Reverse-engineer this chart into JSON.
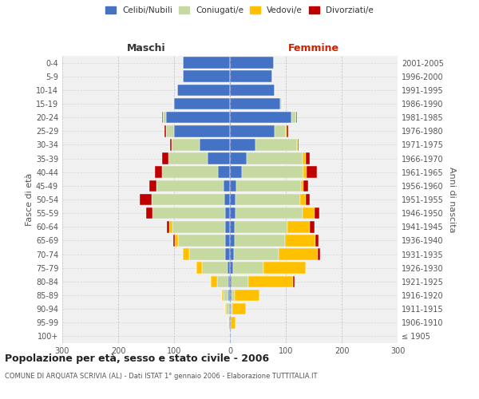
{
  "age_groups": [
    "100+",
    "95-99",
    "90-94",
    "85-89",
    "80-84",
    "75-79",
    "70-74",
    "65-69",
    "60-64",
    "55-59",
    "50-54",
    "45-49",
    "40-44",
    "35-39",
    "30-34",
    "25-29",
    "20-24",
    "15-19",
    "10-14",
    "5-9",
    "0-4"
  ],
  "birth_years": [
    "≤ 1905",
    "1906-1910",
    "1911-1915",
    "1916-1920",
    "1921-1925",
    "1926-1930",
    "1931-1935",
    "1936-1940",
    "1941-1945",
    "1946-1950",
    "1951-1955",
    "1956-1960",
    "1961-1965",
    "1966-1970",
    "1971-1975",
    "1976-1980",
    "1981-1985",
    "1986-1990",
    "1991-1995",
    "1996-2000",
    "2001-2005"
  ],
  "male": {
    "celibe": [
      0,
      1,
      2,
      3,
      3,
      5,
      8,
      8,
      8,
      8,
      10,
      12,
      22,
      40,
      55,
      100,
      115,
      100,
      95,
      85,
      85
    ],
    "coniugato": [
      0,
      2,
      5,
      8,
      20,
      45,
      65,
      85,
      95,
      130,
      130,
      120,
      100,
      70,
      50,
      15,
      5,
      2,
      0,
      0,
      0
    ],
    "vedovo": [
      0,
      0,
      2,
      4,
      12,
      10,
      12,
      5,
      5,
      0,
      0,
      0,
      0,
      0,
      0,
      0,
      0,
      0,
      0,
      0,
      0
    ],
    "divorziato": [
      0,
      0,
      0,
      0,
      0,
      0,
      0,
      3,
      5,
      12,
      22,
      12,
      12,
      12,
      2,
      2,
      1,
      0,
      0,
      0,
      0
    ]
  },
  "female": {
    "nubile": [
      1,
      2,
      2,
      3,
      3,
      5,
      7,
      8,
      8,
      10,
      10,
      12,
      22,
      30,
      45,
      80,
      110,
      90,
      80,
      75,
      78
    ],
    "coniugata": [
      0,
      0,
      2,
      5,
      30,
      55,
      80,
      90,
      95,
      120,
      115,
      115,
      110,
      100,
      75,
      20,
      8,
      3,
      0,
      0,
      0
    ],
    "vedova": [
      1,
      8,
      25,
      45,
      80,
      75,
      70,
      55,
      40,
      22,
      10,
      5,
      5,
      5,
      2,
      1,
      0,
      0,
      0,
      0,
      0
    ],
    "divorziata": [
      0,
      0,
      0,
      0,
      2,
      0,
      5,
      5,
      8,
      8,
      8,
      8,
      18,
      8,
      1,
      3,
      2,
      0,
      0,
      0,
      0
    ]
  },
  "colors": {
    "celibe": "#4472c4",
    "coniugato": "#c5d9a0",
    "vedovo": "#ffc000",
    "divorziato": "#c00000"
  },
  "xlim": 300,
  "title": "Popolazione per età, sesso e stato civile - 2006",
  "subtitle": "COMUNE DI ARQUATA SCRIVIA (AL) - Dati ISTAT 1° gennaio 2006 - Elaborazione TUTTITALIA.IT",
  "ylabel_left": "Fasce di età",
  "ylabel_right": "Anni di nascita",
  "xlabel_left": "Maschi",
  "xlabel_right": "Femmine",
  "bg_color": "#f0f0f0",
  "legend_labels": [
    "Celibi/Nubili",
    "Coniugati/e",
    "Vedovi/e",
    "Divorziati/e"
  ]
}
